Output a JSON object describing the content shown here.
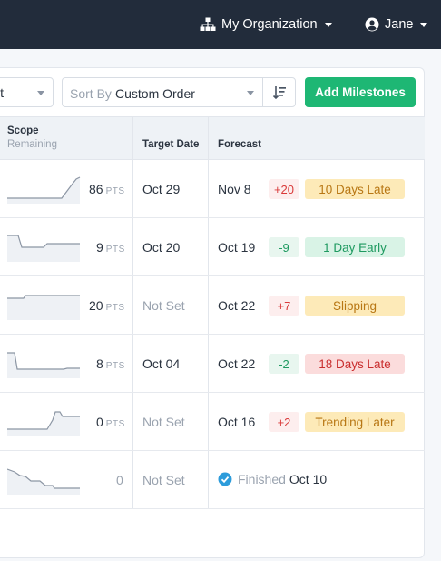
{
  "topbar": {
    "org_name": "My Organization",
    "user_name": "Jane"
  },
  "toolbar": {
    "left_select_value": "lt",
    "sort_label": "Sort By",
    "sort_value": "Custom Order",
    "add_button_label": "Add Milestones"
  },
  "table": {
    "headers": {
      "scope": "Scope",
      "scope_sub": "Remaining",
      "target": "Target Date",
      "forecast": "Forecast"
    },
    "rows": [
      {
        "scope_value": "86",
        "scope_unit": "PTS",
        "target": "Oct 29",
        "forecast": "Nov 8",
        "delta": "+20",
        "status": "10 Days Late"
      },
      {
        "scope_value": "9",
        "scope_unit": "PTS",
        "target": "Oct 20",
        "forecast": "Oct 19",
        "delta": "-9",
        "status": "1 Day Early"
      },
      {
        "scope_value": "20",
        "scope_unit": "PTS",
        "target": "Not Set",
        "forecast": "Oct 22",
        "delta": "+7",
        "status": "Slipping"
      },
      {
        "scope_value": "8",
        "scope_unit": "PTS",
        "target": "Oct 04",
        "forecast": "Oct 22",
        "delta": "-2",
        "status": "18 Days Late"
      },
      {
        "scope_value": "0",
        "scope_unit": "PTS",
        "target": "Not Set",
        "forecast": "Oct 16",
        "delta": "+2",
        "status": "Trending Later"
      },
      {
        "scope_value": "0",
        "target": "Not Set",
        "finished_label": "Finished",
        "finished_date": "Oct 10"
      }
    ]
  },
  "colors": {
    "topbar": "#222c3b",
    "accent_green": "#1eb774",
    "late_red": "#d93a3a",
    "early_green": "#1e9a60",
    "warning_yellow": "#fdeab8",
    "finished_blue": "#2d9cdb"
  },
  "icons": {
    "org": "org-chart-icon",
    "user": "user-circle-icon",
    "sort": "sort-descending-icon",
    "finished": "check-circle-icon"
  }
}
